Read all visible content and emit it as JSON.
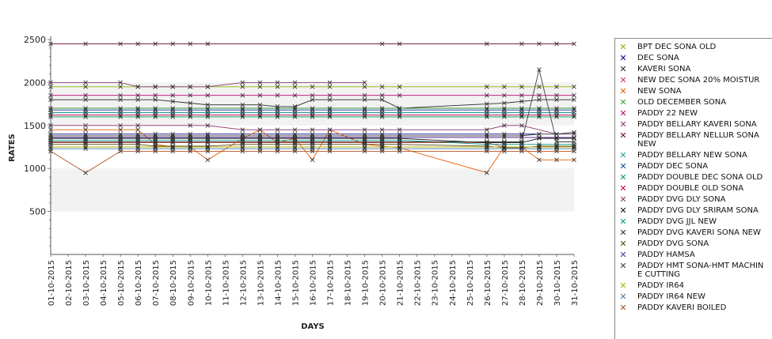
{
  "chart_data": {
    "type": "line",
    "xlabel": "DAYS",
    "ylabel": "RATES",
    "ylim": [
      0,
      2500
    ],
    "yticks": [
      500,
      1000,
      1500,
      2000,
      2500
    ],
    "grid": false,
    "legend_position": "right",
    "categories": [
      "01-10-2015",
      "02-10-2015",
      "03-10-2015",
      "04-10-2015",
      "05-10-2015",
      "06-10-2015",
      "07-10-2015",
      "08-10-2015",
      "09-10-2015",
      "10-10-2015",
      "11-10-2015",
      "12-10-2015",
      "13-10-2015",
      "14-10-2015",
      "15-10-2015",
      "16-10-2015",
      "17-10-2015",
      "18-10-2015",
      "19-10-2015",
      "20-10-2015",
      "21-10-2015",
      "22-10-2015",
      "23-10-2015",
      "24-10-2015",
      "25-10-2015",
      "26-10-2015",
      "27-10-2015",
      "28-10-2015",
      "29-10-2015",
      "30-10-2015",
      "31-10-2015"
    ],
    "series": [
      {
        "name": "BPT DEC SONA OLD",
        "color": "#8db600",
        "marker": "x",
        "values": [
          1950,
          null,
          1950,
          null,
          1950,
          1950,
          1950,
          1950,
          1950,
          1950,
          null,
          1950,
          1950,
          1950,
          1950,
          1950,
          1950,
          null,
          1950,
          1950,
          1950,
          null,
          null,
          null,
          null,
          1950,
          1950,
          1950,
          1950,
          1950,
          1950
        ]
      },
      {
        "name": "DEC SONA",
        "color": "#00008b",
        "marker": "x",
        "values": [
          1400,
          null,
          1400,
          null,
          1400,
          1400,
          1400,
          1400,
          1400,
          1400,
          null,
          1400,
          1400,
          1400,
          1400,
          1400,
          1400,
          null,
          1400,
          1400,
          1400,
          null,
          null,
          null,
          null,
          1400,
          1400,
          1400,
          1400,
          null,
          null
        ]
      },
      {
        "name": "KAVERI SONA",
        "color": "#2a2a2a",
        "marker": "x",
        "values": [
          1800,
          null,
          1800,
          null,
          1800,
          1800,
          1800,
          1780,
          1760,
          1740,
          null,
          1740,
          1740,
          1720,
          1720,
          1800,
          1800,
          null,
          1800,
          1800,
          1700,
          null,
          null,
          null,
          null,
          1750,
          1760,
          1780,
          1800,
          1800,
          1800
        ]
      },
      {
        "name": "NEW DEC SONA 20% MOISTUR",
        "color": "#c04040",
        "marker": "x",
        "values": [
          1300,
          null,
          1300,
          null,
          1300,
          1300,
          1300,
          1300,
          1300,
          1300,
          null,
          1300,
          1300,
          1300,
          1300,
          1300,
          1300,
          null,
          1300,
          1300,
          1300,
          null,
          null,
          null,
          null,
          1300,
          1250,
          1250,
          1250,
          1250,
          1250
        ]
      },
      {
        "name": "NEW SONA",
        "color": "#e85c00",
        "marker": "x",
        "values": [
          1450,
          null,
          1450,
          null,
          1450,
          1450,
          1280,
          1250,
          1250,
          1100,
          null,
          1350,
          1450,
          1300,
          1350,
          1100,
          1450,
          null,
          1280,
          1260,
          1240,
          null,
          null,
          null,
          null,
          950,
          1250,
          1250,
          1100,
          1100,
          1100
        ]
      },
      {
        "name": "OLD DECEMBER SONA",
        "color": "#3c9c3c",
        "marker": "x",
        "values": [
          1700,
          null,
          1700,
          null,
          1700,
          1700,
          1700,
          1700,
          1700,
          1700,
          null,
          1700,
          1700,
          1700,
          1700,
          1700,
          1700,
          null,
          1700,
          1700,
          1700,
          null,
          null,
          null,
          null,
          1700,
          1700,
          1700,
          1700,
          1700,
          1700
        ]
      },
      {
        "name": "PADDY 22 NEW",
        "color": "#c0007a",
        "marker": "x",
        "values": [
          1850,
          null,
          1850,
          null,
          1850,
          1850,
          1850,
          1850,
          1850,
          1850,
          null,
          1850,
          1850,
          1850,
          1850,
          1850,
          1850,
          null,
          1850,
          1850,
          1850,
          null,
          null,
          null,
          null,
          1850,
          1850,
          1850,
          1850,
          1850,
          1850
        ]
      },
      {
        "name": "PADDY BELLARY KAVERI SONA",
        "color": "#8a3a7a",
        "marker": "x",
        "values": [
          2000,
          null,
          2000,
          null,
          2000,
          1950,
          1950,
          1950,
          1950,
          1950,
          null,
          2000,
          2000,
          2000,
          2000,
          null,
          2000,
          null,
          2000,
          null,
          null,
          null,
          null,
          null,
          null,
          null,
          null,
          null,
          null,
          null,
          null
        ]
      },
      {
        "name": "PADDY BELLARY NELLUR SONA NEW",
        "color": "#6a0030",
        "marker": "x",
        "values": [
          2450,
          null,
          2450,
          null,
          2450,
          2450,
          2450,
          2450,
          2450,
          2450,
          null,
          null,
          null,
          null,
          null,
          null,
          null,
          null,
          null,
          2450,
          2450,
          null,
          null,
          null,
          null,
          2450,
          null,
          2450,
          2450,
          2450,
          2450
        ]
      },
      {
        "name": "PADDY BELLARY NEW SONA",
        "color": "#20a0a0",
        "marker": "x",
        "values": [
          1650,
          null,
          1650,
          null,
          1650,
          1650,
          1650,
          1650,
          1650,
          1650,
          null,
          1650,
          1650,
          1650,
          1650,
          1650,
          1650,
          null,
          1650,
          1650,
          1650,
          null,
          null,
          null,
          null,
          1650,
          1650,
          1650,
          1650,
          1650,
          1650
        ]
      },
      {
        "name": "PADDY DEC SONA",
        "color": "#1a4aa0",
        "marker": "x",
        "values": [
          1680,
          null,
          1680,
          null,
          1680,
          1680,
          1680,
          1680,
          1680,
          1680,
          null,
          1680,
          1680,
          1680,
          1680,
          1680,
          1680,
          null,
          1680,
          1680,
          1680,
          null,
          null,
          null,
          null,
          1680,
          1680,
          1680,
          1680,
          1680,
          1680
        ]
      },
      {
        "name": "PADDY DOUBLE DEC SONA OLD",
        "color": "#00a050",
        "marker": "x",
        "values": [
          1600,
          null,
          1600,
          null,
          1600,
          1600,
          1600,
          1600,
          1600,
          1600,
          null,
          1600,
          1600,
          1600,
          1600,
          1600,
          1600,
          null,
          1600,
          1600,
          1600,
          null,
          null,
          null,
          null,
          1600,
          1600,
          1600,
          1600,
          1600,
          1600
        ]
      },
      {
        "name": "PADDY DOUBLE OLD SONA",
        "color": "#c0004a",
        "marker": "x",
        "values": [
          1620,
          null,
          1620,
          null,
          1620,
          1620,
          1620,
          1620,
          1620,
          1620,
          null,
          1620,
          1620,
          1620,
          1620,
          1620,
          1620,
          null,
          1620,
          1620,
          1620,
          null,
          null,
          null,
          null,
          1620,
          1620,
          1620,
          1620,
          1620,
          1620
        ]
      },
      {
        "name": "PADDY DVG DLY SONA",
        "color": "#8a3070",
        "marker": "x",
        "values": [
          1500,
          null,
          1500,
          null,
          1500,
          1500,
          null,
          null,
          1500,
          1500,
          null,
          1450,
          1450,
          1450,
          1450,
          1450,
          1450,
          null,
          1450,
          1450,
          1450,
          null,
          null,
          null,
          null,
          1450,
          1500,
          1500,
          null,
          1400,
          1400
        ]
      },
      {
        "name": "PADDY DVG DLY SRIRAM SONA",
        "color": "#101010",
        "marker": "x",
        "values": [
          1350,
          null,
          1350,
          null,
          1350,
          1350,
          1350,
          1350,
          1350,
          1350,
          null,
          1350,
          1350,
          1350,
          1350,
          1350,
          1350,
          null,
          1350,
          1350,
          1350,
          null,
          null,
          null,
          null,
          1300,
          1300,
          1300,
          1350,
          1350,
          1350
        ]
      },
      {
        "name": "PADDY DVG JJL NEW",
        "color": "#009a8a",
        "marker": "x",
        "values": [
          1330,
          null,
          1330,
          null,
          1330,
          1330,
          1330,
          1330,
          1330,
          1330,
          null,
          1330,
          1330,
          1330,
          1330,
          1330,
          1330,
          null,
          1330,
          1330,
          1330,
          null,
          null,
          null,
          null,
          1280,
          1280,
          1280,
          1280,
          1280,
          1280
        ]
      },
      {
        "name": "PADDY DVG KAVERI SONA NEW",
        "color": "#303030",
        "marker": "x",
        "values": [
          1380,
          null,
          1380,
          null,
          1380,
          1380,
          1380,
          1380,
          1380,
          1380,
          null,
          1380,
          1380,
          1380,
          1380,
          1380,
          1380,
          null,
          1380,
          1380,
          1380,
          null,
          null,
          null,
          null,
          1380,
          1380,
          1380,
          1400,
          1400,
          1420
        ]
      },
      {
        "name": "PADDY DVG SONA",
        "color": "#5a4a10",
        "marker": "x",
        "values": [
          1280,
          null,
          1280,
          null,
          1280,
          1280,
          1260,
          1260,
          1260,
          1260,
          null,
          1280,
          1280,
          1280,
          1280,
          1280,
          1280,
          null,
          1280,
          1280,
          1280,
          null,
          null,
          null,
          null,
          1260,
          1240,
          1240,
          1260,
          1260,
          1260
        ]
      },
      {
        "name": "PADDY HAMSA",
        "color": "#5a2aa0",
        "marker": "x",
        "values": [
          1360,
          null,
          1360,
          null,
          1360,
          1360,
          1360,
          1360,
          1360,
          1360,
          null,
          1360,
          1360,
          1360,
          1360,
          1360,
          1360,
          null,
          1360,
          1360,
          1360,
          null,
          null,
          null,
          null,
          1360,
          1360,
          1360,
          1360,
          1360,
          1360
        ]
      },
      {
        "name": "PADDY HMT SONA-HMT MACHINE CUTTING",
        "color": "#404040",
        "marker": "x",
        "values": [
          1310,
          null,
          1310,
          null,
          1310,
          1310,
          1310,
          1310,
          1310,
          1310,
          null,
          1310,
          1310,
          1310,
          1310,
          1310,
          1310,
          null,
          1310,
          1310,
          1310,
          null,
          null,
          null,
          null,
          1310,
          1310,
          1310,
          2150,
          1310,
          1310
        ]
      },
      {
        "name": "PADDY IR64",
        "color": "#b0b000",
        "marker": "x",
        "values": [
          1250,
          null,
          1250,
          null,
          1250,
          1250,
          1250,
          1250,
          1250,
          1250,
          null,
          1250,
          1250,
          1250,
          1250,
          1250,
          1250,
          null,
          1250,
          1250,
          1250,
          null,
          null,
          null,
          null,
          1250,
          1250,
          1250,
          1250,
          1250,
          1250
        ]
      },
      {
        "name": "PADDY IR64 NEW",
        "color": "#3a7ab0",
        "marker": "x",
        "values": [
          1230,
          null,
          1230,
          null,
          1230,
          1230,
          1230,
          1230,
          1230,
          1230,
          null,
          1230,
          1230,
          1230,
          1230,
          1230,
          1230,
          null,
          1230,
          1230,
          1230,
          null,
          null,
          null,
          null,
          1230,
          1230,
          1230,
          1230,
          1230,
          1230
        ]
      },
      {
        "name": "PADDY KAVERI BOILED",
        "color": "#b05020",
        "marker": "x",
        "values": [
          1200,
          null,
          950,
          null,
          1200,
          1200,
          1200,
          1200,
          1200,
          1200,
          null,
          1200,
          1200,
          1200,
          1200,
          1200,
          1200,
          null,
          1200,
          1200,
          1200,
          null,
          null,
          null,
          null,
          1200,
          1200,
          1200,
          1200,
          1200,
          1200
        ]
      }
    ]
  },
  "legend": {
    "items": [
      {
        "label": "BPT DEC SONA OLD",
        "color": "#8db600"
      },
      {
        "label": "DEC SONA",
        "color": "#00008b"
      },
      {
        "label": "KAVERI SONA",
        "color": "#2a2a2a"
      },
      {
        "label": "NEW DEC SONA 20% MOISTUR",
        "color": "#c04040"
      },
      {
        "label": "NEW SONA",
        "color": "#e85c00"
      },
      {
        "label": "OLD DECEMBER SONA",
        "color": "#3c9c3c"
      },
      {
        "label": "PADDY 22 NEW",
        "color": "#c0007a"
      },
      {
        "label": "PADDY BELLARY KAVERI SONA",
        "color": "#8a3a7a"
      },
      {
        "label": "PADDY BELLARY NELLUR SONA\n NEW",
        "color": "#6a0030"
      },
      {
        "label": "PADDY BELLARY NEW SONA",
        "color": "#20a0a0"
      },
      {
        "label": "PADDY DEC SONA",
        "color": "#1a4aa0"
      },
      {
        "label": "PADDY DOUBLE DEC SONA OLD",
        "color": "#00a050"
      },
      {
        "label": "PADDY DOUBLE OLD SONA",
        "color": "#c0004a"
      },
      {
        "label": "PADDY DVG DLY SONA",
        "color": "#8a3070"
      },
      {
        "label": "PADDY DVG DLY SRIRAM SONA",
        "color": "#101010"
      },
      {
        "label": "PADDY DVG JJL NEW",
        "color": "#009a8a"
      },
      {
        "label": "PADDY DVG KAVERI SONA NEW",
        "color": "#303030"
      },
      {
        "label": "PADDY DVG SONA",
        "color": "#5a4a10"
      },
      {
        "label": "PADDY HAMSA",
        "color": "#5a2aa0"
      },
      {
        "label": "PADDY HMT SONA-HMT MACHIN\nE CUTTING",
        "color": "#404040"
      },
      {
        "label": "PADDY IR64",
        "color": "#b0b000"
      },
      {
        "label": "PADDY IR64 NEW",
        "color": "#3a7ab0"
      },
      {
        "label": "PADDY KAVERI BOILED",
        "color": "#b05020"
      }
    ]
  }
}
